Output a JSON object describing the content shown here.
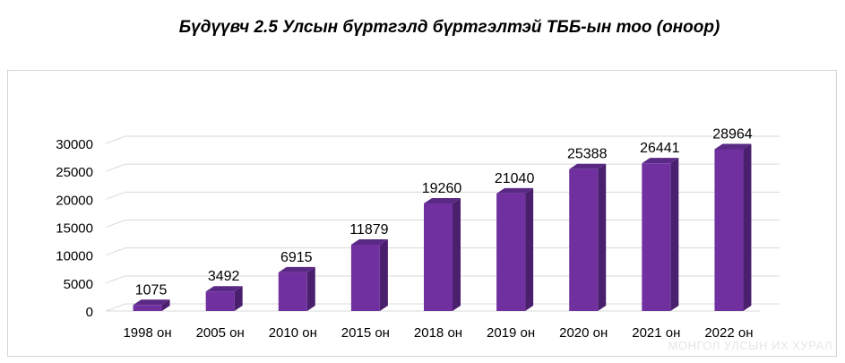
{
  "chart_data": {
    "type": "bar",
    "title": "Бүдүүвч 2.5 Улсын бүртгэлд бүртгэлтэй ТББ-ын тоо (оноор)",
    "categories": [
      "1998 он",
      "2005 он",
      "2010 он",
      "2015 он",
      "2018 он",
      "2019 он",
      "2020 он",
      "2021 он",
      "2022 он"
    ],
    "values": [
      1075,
      3492,
      6915,
      11879,
      19260,
      21040,
      25388,
      26441,
      28964
    ],
    "ylim": [
      0,
      30000
    ],
    "yticks": [
      0,
      5000,
      10000,
      15000,
      20000,
      25000,
      30000
    ],
    "grid": true,
    "legend": "none",
    "bar_color": "#7030a0"
  },
  "watermark": "МОНГОЛ УЛСЫН ИХ ХУРАЛ"
}
